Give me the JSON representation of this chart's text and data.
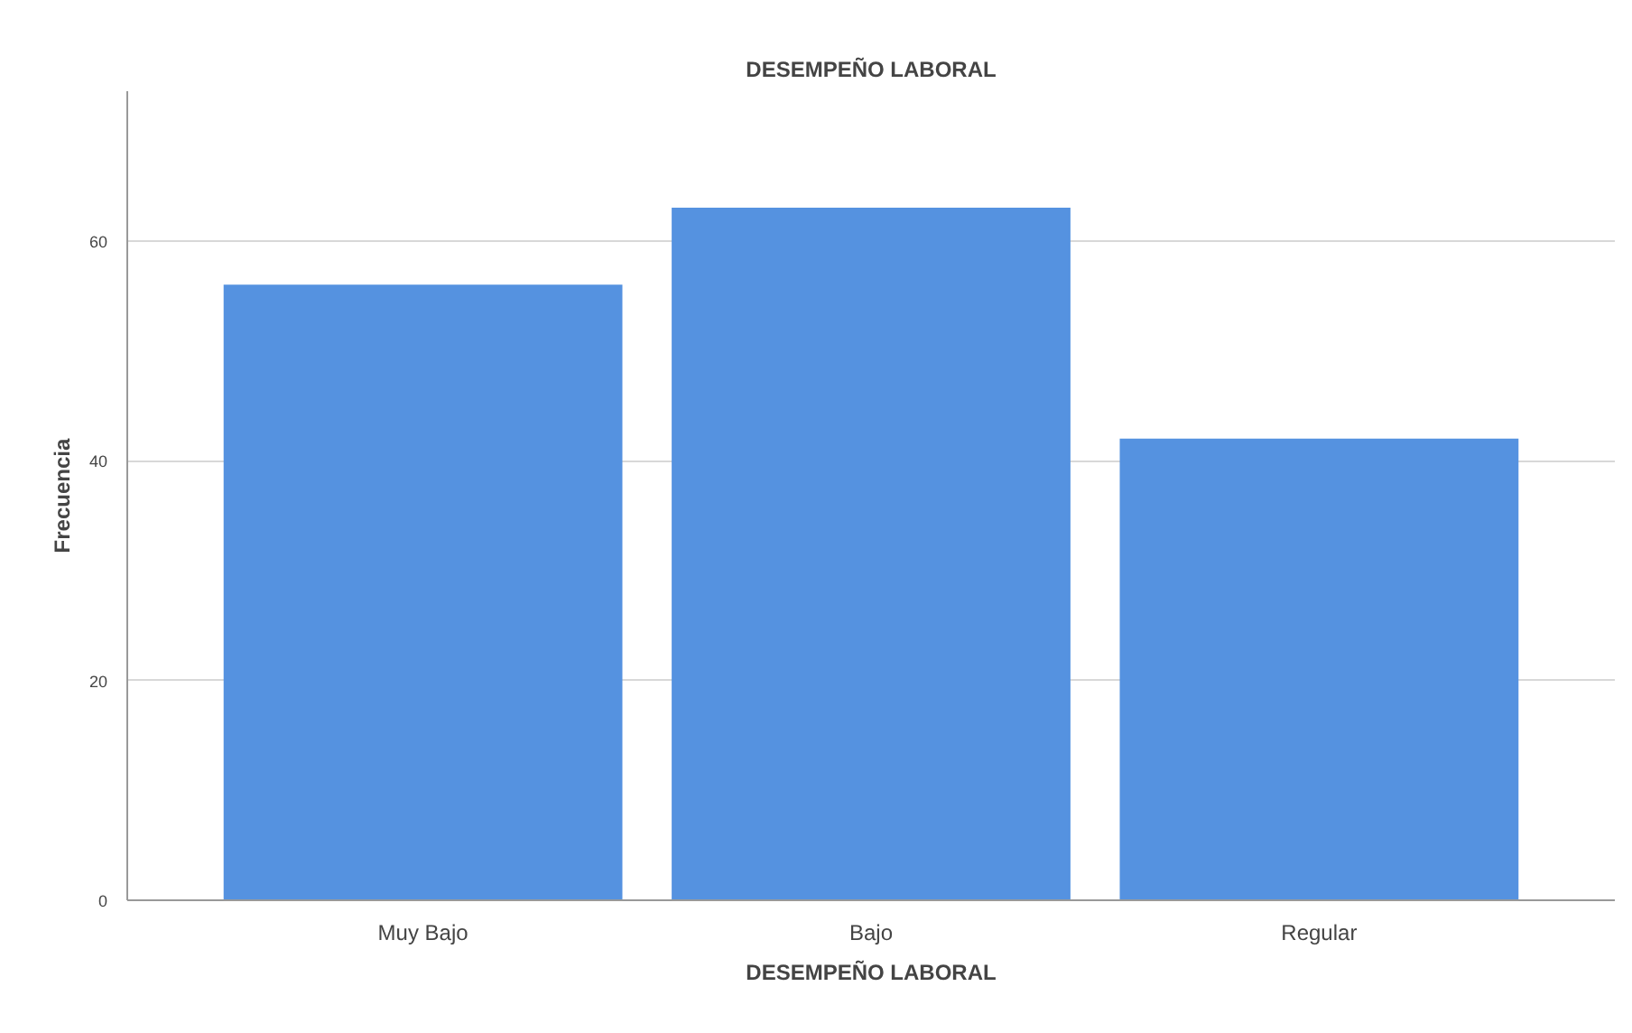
{
  "chart_data": {
    "type": "bar",
    "title": "DESEMPEÑO LABORAL",
    "xlabel": "DESEMPEÑO LABORAL",
    "ylabel": "Frecuencia",
    "categories": [
      "Muy Bajo",
      "Bajo",
      "Regular"
    ],
    "values": [
      56,
      63,
      42
    ],
    "color": "#5592e0",
    "ylim": [
      0,
      73.6
    ],
    "yticks": [
      0,
      20,
      40,
      60
    ],
    "grid": "y"
  }
}
